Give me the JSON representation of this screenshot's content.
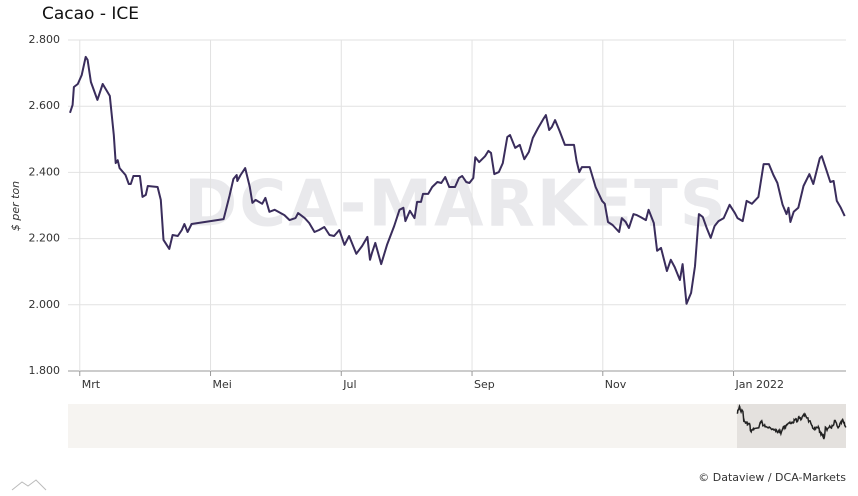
{
  "chart_data": {
    "type": "line",
    "title": "Cacao - ICE",
    "y_label": "$ per ton",
    "watermark": "DCA-MARKETS",
    "credit": "© Dataview / DCA-Markets",
    "color": "#3a2d5c",
    "grid": true,
    "x": [
      2.85,
      2.89,
      2.91,
      2.97,
      3.03,
      3.09,
      3.12,
      3.17,
      3.27,
      3.35,
      3.46,
      3.52,
      3.55,
      3.58,
      3.61,
      3.7,
      3.75,
      3.78,
      3.82,
      3.92,
      3.96,
      4.01,
      4.04,
      4.19,
      4.24,
      4.28,
      4.37,
      4.42,
      4.5,
      4.56,
      4.6,
      4.65,
      4.71,
      5.2,
      5.29,
      5.35,
      5.4,
      5.41,
      5.46,
      5.53,
      5.6,
      5.64,
      5.69,
      5.79,
      5.84,
      5.9,
      5.98,
      6.13,
      6.21,
      6.3,
      6.34,
      6.44,
      6.51,
      6.59,
      6.66,
      6.74,
      6.82,
      6.89,
      6.97,
      7.05,
      7.12,
      7.23,
      7.32,
      7.4,
      7.44,
      7.47,
      7.52,
      7.61,
      7.7,
      7.81,
      7.89,
      7.95,
      7.98,
      8.05,
      8.12,
      8.16,
      8.22,
      8.25,
      8.33,
      8.39,
      8.47,
      8.53,
      8.59,
      8.65,
      8.74,
      8.8,
      8.85,
      8.91,
      8.96,
      9.02,
      9.05,
      9.11,
      9.2,
      9.25,
      9.29,
      9.34,
      9.41,
      9.47,
      9.54,
      9.58,
      9.66,
      9.73,
      9.8,
      9.87,
      9.93,
      10.01,
      10.09,
      10.13,
      10.18,
      10.22,
      10.27,
      10.34,
      10.42,
      10.56,
      10.6,
      10.64,
      10.68,
      10.8,
      10.89,
      10.99,
      11.03,
      11.08,
      11.15,
      11.25,
      11.29,
      11.35,
      11.4,
      11.47,
      11.52,
      11.58,
      11.66,
      11.7,
      11.78,
      11.83,
      11.89,
      11.98,
      12.04,
      12.1,
      12.18,
      12.22,
      12.28,
      12.35,
      12.41,
      12.47,
      12.53,
      12.59,
      12.65,
      12.71,
      12.77,
      12.85,
      12.94,
      13.02,
      13.06,
      13.14,
      13.2,
      13.28,
      13.38,
      13.46,
      13.54,
      13.61,
      13.67,
      13.75,
      13.81,
      13.84,
      13.87,
      13.92,
      13.99,
      14.07,
      14.16,
      14.22,
      14.32,
      14.35,
      14.42,
      14.48,
      14.53,
      14.58,
      14.64,
      14.7
    ],
    "values": [
      2580,
      2604,
      2658,
      2667,
      2694,
      2749,
      2740,
      2673,
      2619,
      2667,
      2631,
      2513,
      2428,
      2437,
      2413,
      2392,
      2365,
      2365,
      2389,
      2389,
      2326,
      2332,
      2359,
      2356,
      2317,
      2196,
      2169,
      2211,
      2208,
      2226,
      2244,
      2220,
      2244,
      2259,
      2329,
      2380,
      2392,
      2374,
      2392,
      2413,
      2356,
      2308,
      2317,
      2305,
      2323,
      2281,
      2287,
      2271,
      2256,
      2262,
      2277,
      2262,
      2247,
      2220,
      2226,
      2235,
      2211,
      2208,
      2226,
      2181,
      2208,
      2154,
      2178,
      2205,
      2136,
      2157,
      2187,
      2123,
      2181,
      2238,
      2287,
      2293,
      2253,
      2284,
      2262,
      2311,
      2311,
      2335,
      2335,
      2356,
      2371,
      2368,
      2386,
      2356,
      2356,
      2383,
      2389,
      2371,
      2368,
      2383,
      2446,
      2431,
      2449,
      2465,
      2459,
      2395,
      2401,
      2428,
      2507,
      2513,
      2474,
      2483,
      2440,
      2462,
      2504,
      2534,
      2561,
      2573,
      2528,
      2537,
      2558,
      2525,
      2483,
      2483,
      2434,
      2401,
      2416,
      2416,
      2356,
      2314,
      2305,
      2250,
      2241,
      2220,
      2262,
      2250,
      2232,
      2274,
      2271,
      2265,
      2256,
      2287,
      2247,
      2163,
      2172,
      2102,
      2136,
      2114,
      2075,
      2123,
      2003,
      2036,
      2117,
      2274,
      2265,
      2232,
      2202,
      2238,
      2253,
      2262,
      2302,
      2277,
      2262,
      2253,
      2314,
      2305,
      2326,
      2425,
      2425,
      2392,
      2368,
      2302,
      2274,
      2293,
      2250,
      2281,
      2293,
      2359,
      2395,
      2365,
      2443,
      2449,
      2407,
      2371,
      2374,
      2314,
      2293,
      2268
    ],
    "xlim": [
      2.82,
      14.72
    ],
    "xticks": [
      {
        "value": 3,
        "label": "Mrt"
      },
      {
        "value": 5,
        "label": "Mei"
      },
      {
        "value": 7,
        "label": "Jul"
      },
      {
        "value": 9,
        "label": "Sep"
      },
      {
        "value": 11,
        "label": "Nov"
      },
      {
        "value": 13,
        "label": "Jan 2022"
      }
    ],
    "ylim": [
      1800,
      2800
    ],
    "yticks": [
      {
        "value": 1800,
        "label": "1.800"
      },
      {
        "value": 2000,
        "label": "2.000"
      },
      {
        "value": 2200,
        "label": "2.200"
      },
      {
        "value": 2400,
        "label": "2.400"
      },
      {
        "value": 2600,
        "label": "2.600"
      },
      {
        "value": 2800,
        "label": "2.800"
      }
    ]
  }
}
